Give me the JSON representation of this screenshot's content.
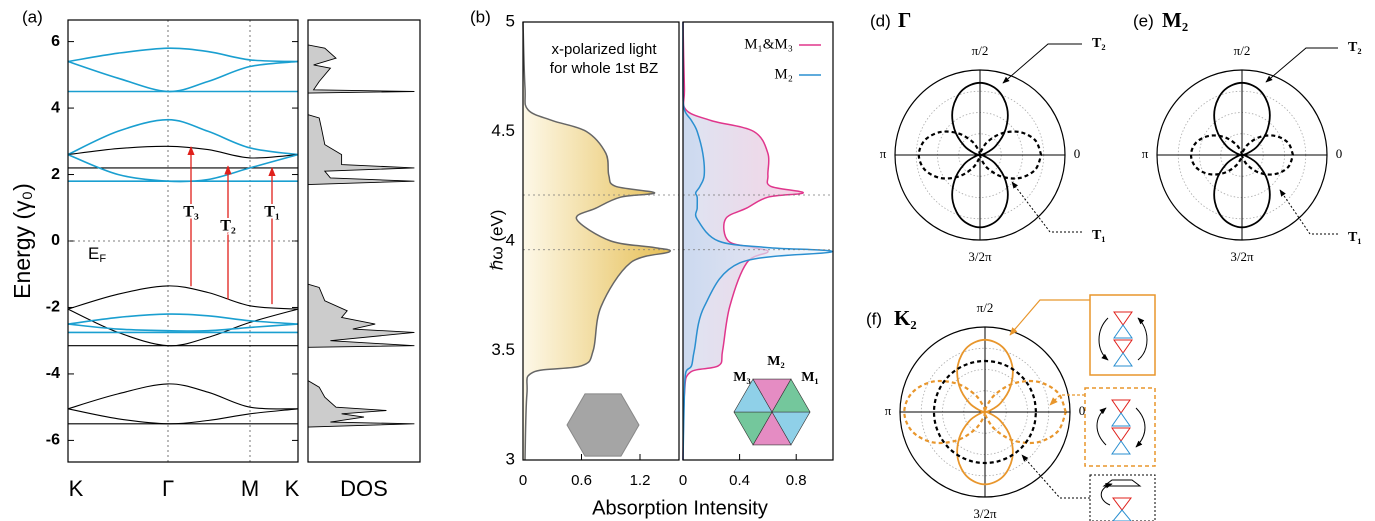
{
  "chart_data": [
    {
      "type": "line",
      "panel_label": "(a)",
      "ylabel": "Energy (γ₀)",
      "x": [
        0,
        0.5,
        1,
        1.4,
        1.82,
        2.3
      ],
      "xlim": [
        0,
        2.3
      ],
      "xticks": [
        {
          "value": 0,
          "label": "K"
        },
        {
          "value": 1,
          "label": "Γ"
        },
        {
          "value": 1.82,
          "label": "M"
        },
        {
          "value": 2.3,
          "label": "K"
        }
      ],
      "ylim": [
        -6.65,
        6.65
      ],
      "yticks": [
        -6,
        -4,
        -2,
        0,
        2,
        4,
        6
      ],
      "fermi_level": 0,
      "fermi_label": {
        "text": "E",
        "sub": "F"
      },
      "series": [
        {
          "color": "#1a9fd0",
          "values": [
            5.4,
            5.65,
            5.8,
            5.7,
            5.45,
            5.4
          ]
        },
        {
          "color": "#1a9fd0",
          "values": [
            5.4,
            4.9,
            4.5,
            4.8,
            5.25,
            5.4
          ]
        },
        {
          "color": "#1a9fd0",
          "values": [
            4.5,
            4.5,
            4.5,
            4.5,
            4.5,
            4.5
          ]
        },
        {
          "color": "#1a9fd0",
          "values": [
            2.6,
            3.3,
            3.65,
            3.3,
            2.8,
            2.6
          ]
        },
        {
          "color": "#000000",
          "values": [
            2.6,
            2.78,
            2.85,
            2.75,
            2.5,
            2.6
          ]
        },
        {
          "color": "#000000",
          "values": [
            2.2,
            2.2,
            2.2,
            2.2,
            2.2,
            2.2
          ]
        },
        {
          "color": "#1a9fd0",
          "values": [
            2.6,
            2.0,
            1.8,
            1.85,
            2.2,
            2.6
          ]
        },
        {
          "color": "#1a9fd0",
          "values": [
            1.8,
            1.8,
            1.8,
            1.8,
            1.8,
            1.8
          ]
        },
        {
          "color": "#000000",
          "values": [
            -2.05,
            -1.6,
            -1.35,
            -1.55,
            -1.95,
            -2.05
          ]
        },
        {
          "color": "#000000",
          "values": [
            -2.05,
            -2.75,
            -3.15,
            -2.9,
            -2.45,
            -2.05
          ]
        },
        {
          "color": "#000000",
          "values": [
            -3.15,
            -3.15,
            -3.15,
            -3.15,
            -3.15,
            -3.15
          ]
        },
        {
          "color": "#1a9fd0",
          "values": [
            -2.5,
            -2.3,
            -2.2,
            -2.25,
            -2.4,
            -2.5
          ]
        },
        {
          "color": "#1a9fd0",
          "values": [
            -2.5,
            -2.65,
            -2.7,
            -2.7,
            -2.6,
            -2.5
          ]
        },
        {
          "color": "#1a9fd0",
          "values": [
            -2.75,
            -2.75,
            -2.75,
            -2.75,
            -2.75,
            -2.75
          ]
        },
        {
          "color": "#000000",
          "values": [
            -5.05,
            -4.6,
            -4.3,
            -4.55,
            -5.0,
            -5.05
          ]
        },
        {
          "color": "#000000",
          "values": [
            -5.05,
            -5.35,
            -5.5,
            -5.4,
            -5.2,
            -5.05
          ]
        },
        {
          "color": "#000000",
          "values": [
            -5.5,
            -5.5,
            -5.5,
            -5.5,
            -5.5,
            -5.5
          ]
        }
      ],
      "transitions": [
        {
          "label": "T₃",
          "x": 1.23,
          "from": -1.36,
          "to": 2.83
        },
        {
          "label": "T₂",
          "x": 1.6,
          "from": -1.76,
          "to": 2.25
        },
        {
          "label": "T₁",
          "x": 2.04,
          "from": -1.9,
          "to": 2.2
        }
      ]
    },
    {
      "type": "dos",
      "xlabel": "DOS",
      "xlim": [
        0,
        1
      ],
      "ylim": [
        -6.65,
        6.65
      ],
      "color": "#cccccc",
      "energy": [
        -6.65,
        -5.6,
        -5.5,
        -5.45,
        -5.3,
        -5.2,
        -5.1,
        -5.0,
        -4.7,
        -4.4,
        -4.2,
        -3.2,
        -3.15,
        -3.0,
        -2.8,
        -2.75,
        -2.65,
        -2.5,
        -2.3,
        -2.1,
        -1.8,
        -1.4,
        -1.3,
        1.7,
        1.8,
        1.9,
        2.1,
        2.2,
        2.3,
        2.6,
        2.9,
        3.4,
        3.7,
        3.8,
        4.45,
        4.5,
        4.55,
        4.8,
        5.2,
        5.3,
        5.5,
        5.8,
        5.9,
        6.65
      ],
      "values": [
        0,
        0,
        0.95,
        0.2,
        0.5,
        0.3,
        0.7,
        0.25,
        0.15,
        0.1,
        0,
        0,
        0.95,
        0.2,
        0.8,
        0.95,
        0.4,
        0.6,
        0.3,
        0.35,
        0.15,
        0.1,
        0,
        0,
        0.95,
        0.2,
        0.15,
        0.95,
        0.3,
        0.3,
        0.15,
        0.12,
        0.1,
        0,
        0,
        0.95,
        0.05,
        0.1,
        0.2,
        0.05,
        0.25,
        0.15,
        0,
        0
      ]
    },
    {
      "type": "absorption",
      "panel_label": "(b)",
      "ylabel": "ℏω  (eV)",
      "xlabel": "Absorption Intensity",
      "annotation": [
        "x-polarized light",
        "for whole 1st BZ"
      ],
      "energy": [
        3.0,
        3.3,
        3.4,
        3.43,
        3.5,
        3.7,
        3.9,
        3.95,
        3.97,
        4.0,
        4.1,
        4.15,
        4.2,
        4.22,
        4.25,
        4.3,
        4.4,
        4.5,
        4.55,
        4.6,
        4.7,
        5.0
      ],
      "xlim": [
        0,
        1.6
      ],
      "xticks": [
        0,
        0.6,
        1.2
      ],
      "ylim": [
        3,
        5
      ],
      "yticks": [
        3,
        3.5,
        4,
        4.5,
        5
      ],
      "ref_lines": [
        3.96,
        4.21
      ],
      "series": [
        {
          "color": "#e2b547",
          "values": [
            0.02,
            0.04,
            0.1,
            0.6,
            0.72,
            0.8,
            1.1,
            1.5,
            1.35,
            0.9,
            0.55,
            0.75,
            1.0,
            1.35,
            0.95,
            0.88,
            0.85,
            0.65,
            0.3,
            0.05,
            0.02,
            0.0
          ]
        }
      ]
    },
    {
      "type": "absorption",
      "energy": [
        3.0,
        3.3,
        3.4,
        3.43,
        3.5,
        3.7,
        3.9,
        3.95,
        3.97,
        4.0,
        4.1,
        4.15,
        4.2,
        4.22,
        4.25,
        4.3,
        4.4,
        4.5,
        4.55,
        4.6,
        4.7,
        5.0
      ],
      "xlim": [
        0,
        1.06
      ],
      "xticks": [
        0,
        0.4,
        0.8
      ],
      "ylim": [
        3,
        5
      ],
      "ref_lines": [
        3.96,
        4.21
      ],
      "legend": "upper right",
      "series": [
        {
          "name": "M₁&M₃",
          "color": "#e0368c",
          "values": [
            0,
            0.01,
            0.05,
            0.25,
            0.28,
            0.33,
            0.45,
            0.6,
            0.5,
            0.32,
            0.3,
            0.45,
            0.6,
            0.85,
            0.62,
            0.6,
            0.6,
            0.5,
            0.2,
            0.02,
            0.01,
            0
          ]
        },
        {
          "name": "M₂",
          "color": "#2a8fd0",
          "values": [
            0,
            0.01,
            0.02,
            0.06,
            0.08,
            0.15,
            0.4,
            1.05,
            0.6,
            0.25,
            0.1,
            0.1,
            0.1,
            0.09,
            0.12,
            0.15,
            0.14,
            0.1,
            0.06,
            0.01,
            0,
            0
          ]
        }
      ],
      "inset_labels": [
        {
          "text": "M₃",
          "color": "#3a9a5c"
        },
        {
          "text": "M₂",
          "color": "#2a8fd0"
        },
        {
          "text": "M₁",
          "color": "#d6308a"
        }
      ]
    },
    {
      "type": "polar",
      "panel_label": "(d)",
      "title": "Γ",
      "theta": [
        0,
        15,
        30,
        45,
        60,
        75,
        90,
        105,
        120,
        135,
        150,
        165,
        180,
        195,
        210,
        225,
        240,
        255,
        270,
        285,
        300,
        315,
        330,
        345,
        360
      ],
      "rlim": [
        0,
        1
      ],
      "rticks": [
        0.25,
        0.5,
        0.75
      ],
      "thetaticks": [
        {
          "value": 90,
          "label": "π/2"
        },
        {
          "value": 180,
          "label": "π"
        },
        0,
        {
          "value": 270,
          "label": "3/2π"
        }
      ],
      "series": [
        {
          "color": "#000000",
          "dashed": false,
          "values": [
            0,
            0.057,
            0.213,
            0.425,
            0.638,
            0.793,
            0.85,
            0.793,
            0.638,
            0.425,
            0.213,
            0.057,
            0,
            0.057,
            0.213,
            0.425,
            0.638,
            0.793,
            0.85,
            0.793,
            0.638,
            0.425,
            0.213,
            0.057,
            0
          ]
        },
        {
          "color": "#000000",
          "dashed": true,
          "values": [
            0.72,
            0.672,
            0.54,
            0.36,
            0.18,
            0.048,
            0,
            0.048,
            0.18,
            0.36,
            0.54,
            0.672,
            0.72,
            0.672,
            0.54,
            0.36,
            0.18,
            0.048,
            0,
            0.048,
            0.18,
            0.36,
            0.54,
            0.672,
            0.72
          ]
        }
      ],
      "annotations": [
        "T₂",
        "T₁"
      ]
    },
    {
      "type": "polar",
      "panel_label": "(e)",
      "title": "M₂",
      "theta": [
        0,
        15,
        30,
        45,
        60,
        75,
        90,
        105,
        120,
        135,
        150,
        165,
        180,
        195,
        210,
        225,
        240,
        255,
        270,
        285,
        300,
        315,
        330,
        345,
        360
      ],
      "rlim": [
        0,
        1
      ],
      "rticks": [
        0.25,
        0.5,
        0.75
      ],
      "thetaticks": [
        {
          "value": 90,
          "label": "π/2"
        },
        {
          "value": 180,
          "label": "π"
        },
        0,
        {
          "value": 270,
          "label": "3/2π"
        }
      ],
      "series": [
        {
          "color": "#000000",
          "dashed": false,
          "values": [
            0,
            0.057,
            0.213,
            0.425,
            0.638,
            0.793,
            0.85,
            0.793,
            0.638,
            0.425,
            0.213,
            0.057,
            0,
            0.057,
            0.213,
            0.425,
            0.638,
            0.793,
            0.85,
            0.793,
            0.638,
            0.425,
            0.213,
            0.057,
            0
          ]
        },
        {
          "color": "#000000",
          "dashed": true,
          "values": [
            0.6,
            0.56,
            0.45,
            0.3,
            0.15,
            0.04,
            0,
            0.04,
            0.15,
            0.3,
            0.45,
            0.56,
            0.6,
            0.56,
            0.45,
            0.3,
            0.15,
            0.04,
            0,
            0.04,
            0.15,
            0.3,
            0.45,
            0.56,
            0.6
          ]
        }
      ],
      "annotations": [
        "T₂",
        "T₁"
      ]
    },
    {
      "type": "polar",
      "panel_label": "(f)",
      "title": "K₂",
      "theta": [
        0,
        15,
        30,
        45,
        60,
        75,
        90,
        105,
        120,
        135,
        150,
        165,
        180,
        195,
        210,
        225,
        240,
        255,
        270,
        285,
        300,
        315,
        330,
        345,
        360
      ],
      "rlim": [
        0,
        1
      ],
      "rticks": [
        0.25,
        0.5,
        0.75
      ],
      "thetaticks": [
        {
          "value": 90,
          "label": "π/2"
        },
        {
          "value": 180,
          "label": "π"
        },
        0,
        {
          "value": 270,
          "label": "3/2π"
        }
      ],
      "series": [
        {
          "color": "#e8962c",
          "dashed": false,
          "values": [
            0,
            0.057,
            0.213,
            0.425,
            0.638,
            0.793,
            0.85,
            0.793,
            0.638,
            0.425,
            0.213,
            0.057,
            0,
            0.057,
            0.213,
            0.425,
            0.638,
            0.793,
            0.85,
            0.793,
            0.638,
            0.425,
            0.213,
            0.057,
            0
          ]
        },
        {
          "color": "#e8962c",
          "dashed": true,
          "values": [
            0.95,
            0.886,
            0.713,
            0.475,
            0.238,
            0.064,
            0,
            0.064,
            0.238,
            0.475,
            0.713,
            0.886,
            0.95,
            0.886,
            0.713,
            0.475,
            0.238,
            0.064,
            0,
            0.064,
            0.238,
            0.475,
            0.713,
            0.886,
            0.95
          ]
        },
        {
          "color": "#000000",
          "dashed": true,
          "values": [
            0.6,
            0.6,
            0.6,
            0.6,
            0.6,
            0.6,
            0.6,
            0.6,
            0.6,
            0.6,
            0.6,
            0.6,
            0.6,
            0.6,
            0.6,
            0.6,
            0.6,
            0.6,
            0.6,
            0.6,
            0.6,
            0.6,
            0.6,
            0.6,
            0.6
          ]
        }
      ]
    }
  ]
}
